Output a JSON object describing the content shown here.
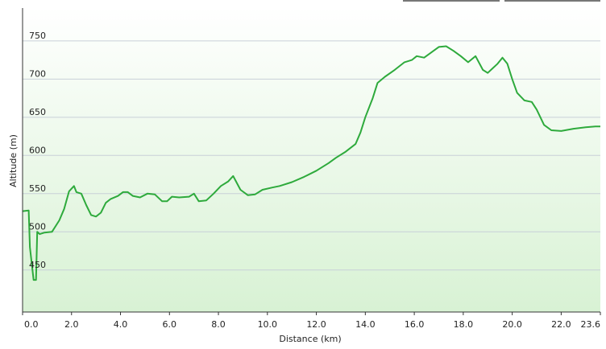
{
  "chart_data": {
    "type": "area",
    "x_label": "Distance  (km)",
    "y_label": "Altitude (m)",
    "x": [
      0.0,
      0.25,
      0.3,
      0.45,
      0.55,
      0.6,
      0.7,
      0.9,
      1.2,
      1.5,
      1.7,
      1.9,
      2.1,
      2.2,
      2.4,
      2.6,
      2.8,
      3.0,
      3.2,
      3.4,
      3.6,
      3.9,
      4.1,
      4.3,
      4.5,
      4.8,
      5.1,
      5.4,
      5.7,
      5.9,
      6.1,
      6.4,
      6.8,
      7.0,
      7.2,
      7.5,
      7.8,
      8.1,
      8.4,
      8.6,
      8.9,
      9.2,
      9.5,
      9.8,
      10.2,
      10.5,
      11.0,
      11.5,
      12.0,
      12.5,
      12.8,
      13.2,
      13.6,
      13.8,
      14.0,
      14.3,
      14.5,
      14.8,
      15.2,
      15.6,
      15.9,
      16.1,
      16.4,
      16.7,
      17.0,
      17.3,
      17.6,
      17.9,
      18.2,
      18.5,
      18.8,
      19.0,
      19.2,
      19.4,
      19.6,
      19.8,
      20.0,
      20.2,
      20.5,
      20.8,
      21.0,
      21.3,
      21.6,
      22.0,
      22.5,
      23.0,
      23.4,
      23.6
    ],
    "series": [
      {
        "name": "Altitude",
        "color": "#2eaa3c",
        "values": [
          527,
          528,
          480,
          437,
          437,
          500,
          497,
          499,
          500,
          515,
          530,
          553,
          560,
          552,
          550,
          535,
          522,
          520,
          525,
          538,
          543,
          547,
          552,
          552,
          547,
          545,
          550,
          549,
          540,
          540,
          546,
          545,
          546,
          550,
          540,
          541,
          550,
          560,
          566,
          573,
          555,
          548,
          549,
          555,
          558,
          560,
          565,
          572,
          580,
          590,
          597,
          605,
          615,
          630,
          650,
          675,
          695,
          703,
          712,
          722,
          725,
          730,
          728,
          735,
          742,
          743,
          737,
          730,
          722,
          730,
          712,
          708,
          714,
          720,
          728,
          720,
          700,
          682,
          672,
          670,
          660,
          640,
          633,
          632,
          635,
          637,
          638,
          638
        ]
      }
    ],
    "xlim": [
      0,
      23.6
    ],
    "xticks": [
      {
        "value": 0,
        "label": "0.0"
      },
      {
        "value": 2,
        "label": "2.0"
      },
      {
        "value": 4,
        "label": "4.0"
      },
      {
        "value": 6,
        "label": "6.0"
      },
      {
        "value": 8,
        "label": "8.0"
      },
      {
        "value": 10,
        "label": "10.0"
      },
      {
        "value": 12,
        "label": "12.0"
      },
      {
        "value": 14,
        "label": "14.0"
      },
      {
        "value": 16,
        "label": "16.0"
      },
      {
        "value": 18,
        "label": "18.0"
      },
      {
        "value": 20,
        "label": "20.0"
      },
      {
        "value": 22,
        "label": "22.0"
      },
      23.6
    ],
    "ylim": [
      395,
      793
    ],
    "yticks": [
      450,
      500,
      550,
      600,
      650,
      700,
      750
    ],
    "grid": true
  }
}
